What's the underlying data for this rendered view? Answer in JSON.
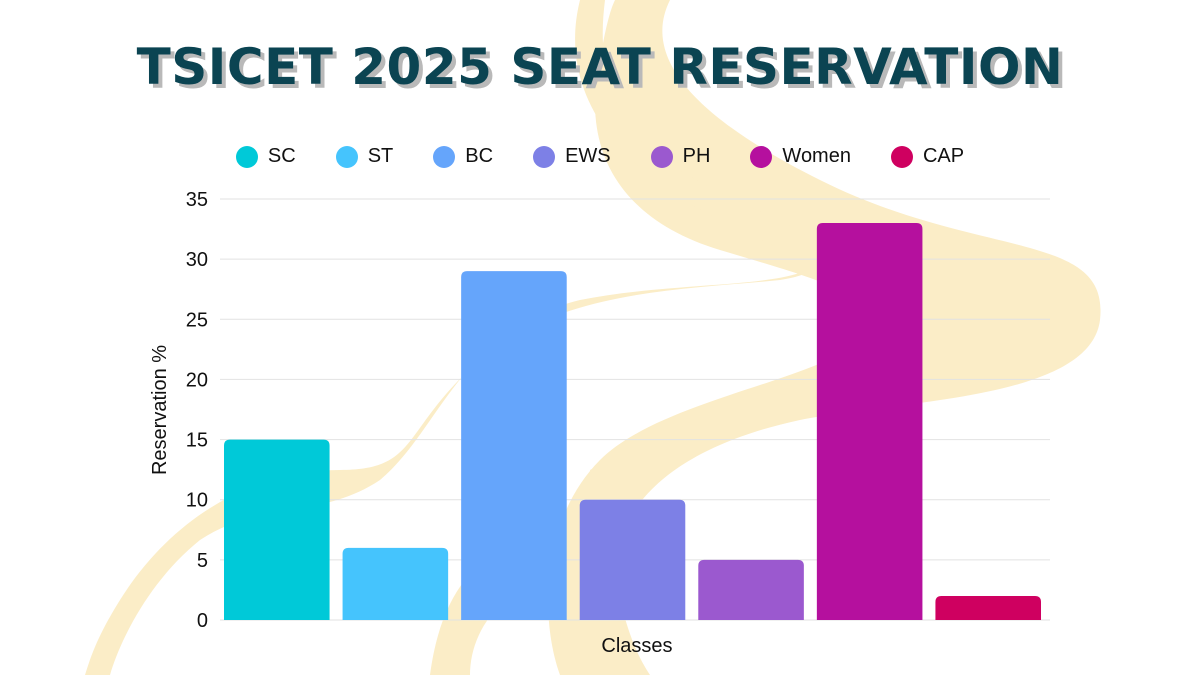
{
  "title": "TSICET 2025 SEAT RESERVATION",
  "chart_data": {
    "type": "bar",
    "title": "TSICET 2025 SEAT RESERVATION",
    "xlabel": "Classes",
    "ylabel": "Reservation %",
    "categories": [
      "SC",
      "ST",
      "BC",
      "EWS",
      "PH",
      "Women",
      "CAP"
    ],
    "values": [
      15,
      6,
      29,
      10,
      5,
      33,
      2
    ],
    "colors": [
      "#00c9d8",
      "#45c4fd",
      "#65a5fb",
      "#7d80e6",
      "#9b59cf",
      "#b5109e",
      "#cf0060"
    ],
    "ylim": [
      0,
      35
    ],
    "yticks": [
      0,
      5,
      10,
      15,
      20,
      25,
      30,
      35
    ],
    "grid": true,
    "legend": "top",
    "background_accent": "#fbedc7"
  }
}
